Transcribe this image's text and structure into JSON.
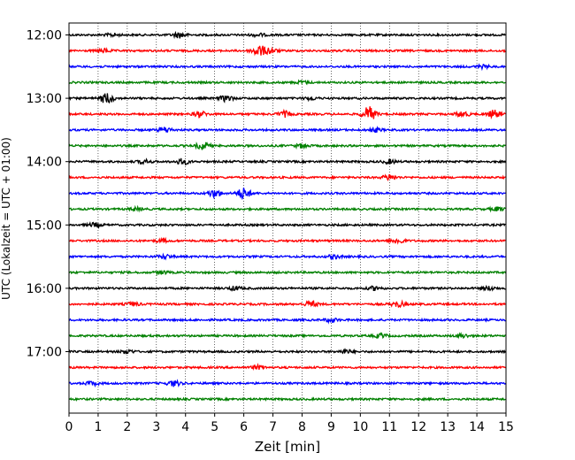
{
  "chart_data": {
    "type": "line",
    "title": "",
    "xlabel": "Zeit  [min]",
    "ylabel": "UTC (Lokalzeit = UTC + 01:00)",
    "xlim": [
      0,
      15
    ],
    "x_ticks": [
      "0",
      "1",
      "2",
      "3",
      "4",
      "5",
      "6",
      "7",
      "8",
      "9",
      "10",
      "11",
      "12",
      "13",
      "14",
      "15"
    ],
    "y_ticks": [
      {
        "label": "12:00",
        "row": 0
      },
      {
        "label": "13:00",
        "row": 4
      },
      {
        "label": "14:00",
        "row": 8
      },
      {
        "label": "15:00",
        "row": 12
      },
      {
        "label": "16:00",
        "row": 16
      },
      {
        "label": "17:00",
        "row": 20
      }
    ],
    "grid": "vertical dotted",
    "trace_colors": [
      "#000000",
      "#ff0000",
      "#0000ff",
      "#008000"
    ],
    "rows_per_hour": 4,
    "minutes_per_row": 15,
    "traces": [
      {
        "start": "12:00",
        "bursts": [
          {
            "t": 3.8,
            "a": 3
          },
          {
            "t": 1.5,
            "a": 1.5
          },
          {
            "t": 6.5,
            "a": 1.5
          }
        ]
      },
      {
        "start": "12:15",
        "bursts": [
          {
            "t": 6.5,
            "a": 6
          },
          {
            "t": 1.2,
            "a": 2
          },
          {
            "t": 6.9,
            "a": 3
          }
        ]
      },
      {
        "start": "12:30",
        "bursts": [
          {
            "t": 14.2,
            "a": 1.5
          }
        ]
      },
      {
        "start": "12:45",
        "bursts": [
          {
            "t": 8.0,
            "a": 1.5
          }
        ]
      },
      {
        "start": "13:00",
        "bursts": [
          {
            "t": 1.3,
            "a": 6
          },
          {
            "t": 5.4,
            "a": 3
          },
          {
            "t": 8.3,
            "a": 1.5
          }
        ]
      },
      {
        "start": "13:15",
        "bursts": [
          {
            "t": 10.3,
            "a": 8
          },
          {
            "t": 4.5,
            "a": 3
          },
          {
            "t": 7.4,
            "a": 3
          },
          {
            "t": 13.5,
            "a": 3
          },
          {
            "t": 14.6,
            "a": 4
          }
        ]
      },
      {
        "start": "13:30",
        "bursts": [
          {
            "t": 3.3,
            "a": 3
          },
          {
            "t": 10.5,
            "a": 2
          }
        ]
      },
      {
        "start": "13:45",
        "bursts": [
          {
            "t": 4.6,
            "a": 4
          },
          {
            "t": 8.0,
            "a": 2
          }
        ]
      },
      {
        "start": "14:00",
        "bursts": [
          {
            "t": 3.9,
            "a": 3
          },
          {
            "t": 2.6,
            "a": 2
          },
          {
            "t": 11.0,
            "a": 2
          }
        ]
      },
      {
        "start": "14:15",
        "bursts": [
          {
            "t": 11.0,
            "a": 3
          }
        ]
      },
      {
        "start": "14:30",
        "bursts": [
          {
            "t": 6.0,
            "a": 6
          },
          {
            "t": 5.0,
            "a": 4
          }
        ]
      },
      {
        "start": "14:45",
        "bursts": [
          {
            "t": 14.7,
            "a": 2
          },
          {
            "t": 2.3,
            "a": 1.5
          }
        ]
      },
      {
        "start": "15:00",
        "bursts": [
          {
            "t": 0.9,
            "a": 2
          }
        ]
      },
      {
        "start": "15:15",
        "bursts": [
          {
            "t": 11.3,
            "a": 3
          },
          {
            "t": 3.2,
            "a": 1.5
          }
        ]
      },
      {
        "start": "15:30",
        "bursts": [
          {
            "t": 9.1,
            "a": 2
          },
          {
            "t": 3.3,
            "a": 2
          }
        ]
      },
      {
        "start": "15:45",
        "bursts": [
          {
            "t": 3.2,
            "a": 1.5
          }
        ]
      },
      {
        "start": "16:00",
        "bursts": [
          {
            "t": 5.7,
            "a": 2
          },
          {
            "t": 10.5,
            "a": 2
          },
          {
            "t": 14.4,
            "a": 2
          }
        ]
      },
      {
        "start": "16:15",
        "bursts": [
          {
            "t": 8.3,
            "a": 3
          },
          {
            "t": 2.2,
            "a": 2
          },
          {
            "t": 11.3,
            "a": 3
          }
        ]
      },
      {
        "start": "16:30",
        "bursts": [
          {
            "t": 9.0,
            "a": 2
          }
        ]
      },
      {
        "start": "16:45",
        "bursts": [
          {
            "t": 10.7,
            "a": 2
          },
          {
            "t": 13.5,
            "a": 2
          }
        ]
      },
      {
        "start": "17:00",
        "bursts": [
          {
            "t": 2.0,
            "a": 2
          },
          {
            "t": 9.5,
            "a": 2
          }
        ]
      },
      {
        "start": "17:15",
        "bursts": [
          {
            "t": 6.5,
            "a": 2
          }
        ]
      },
      {
        "start": "17:30",
        "bursts": [
          {
            "t": 3.6,
            "a": 3
          },
          {
            "t": 0.8,
            "a": 2
          }
        ]
      },
      {
        "start": "17:45",
        "bursts": []
      }
    ]
  }
}
